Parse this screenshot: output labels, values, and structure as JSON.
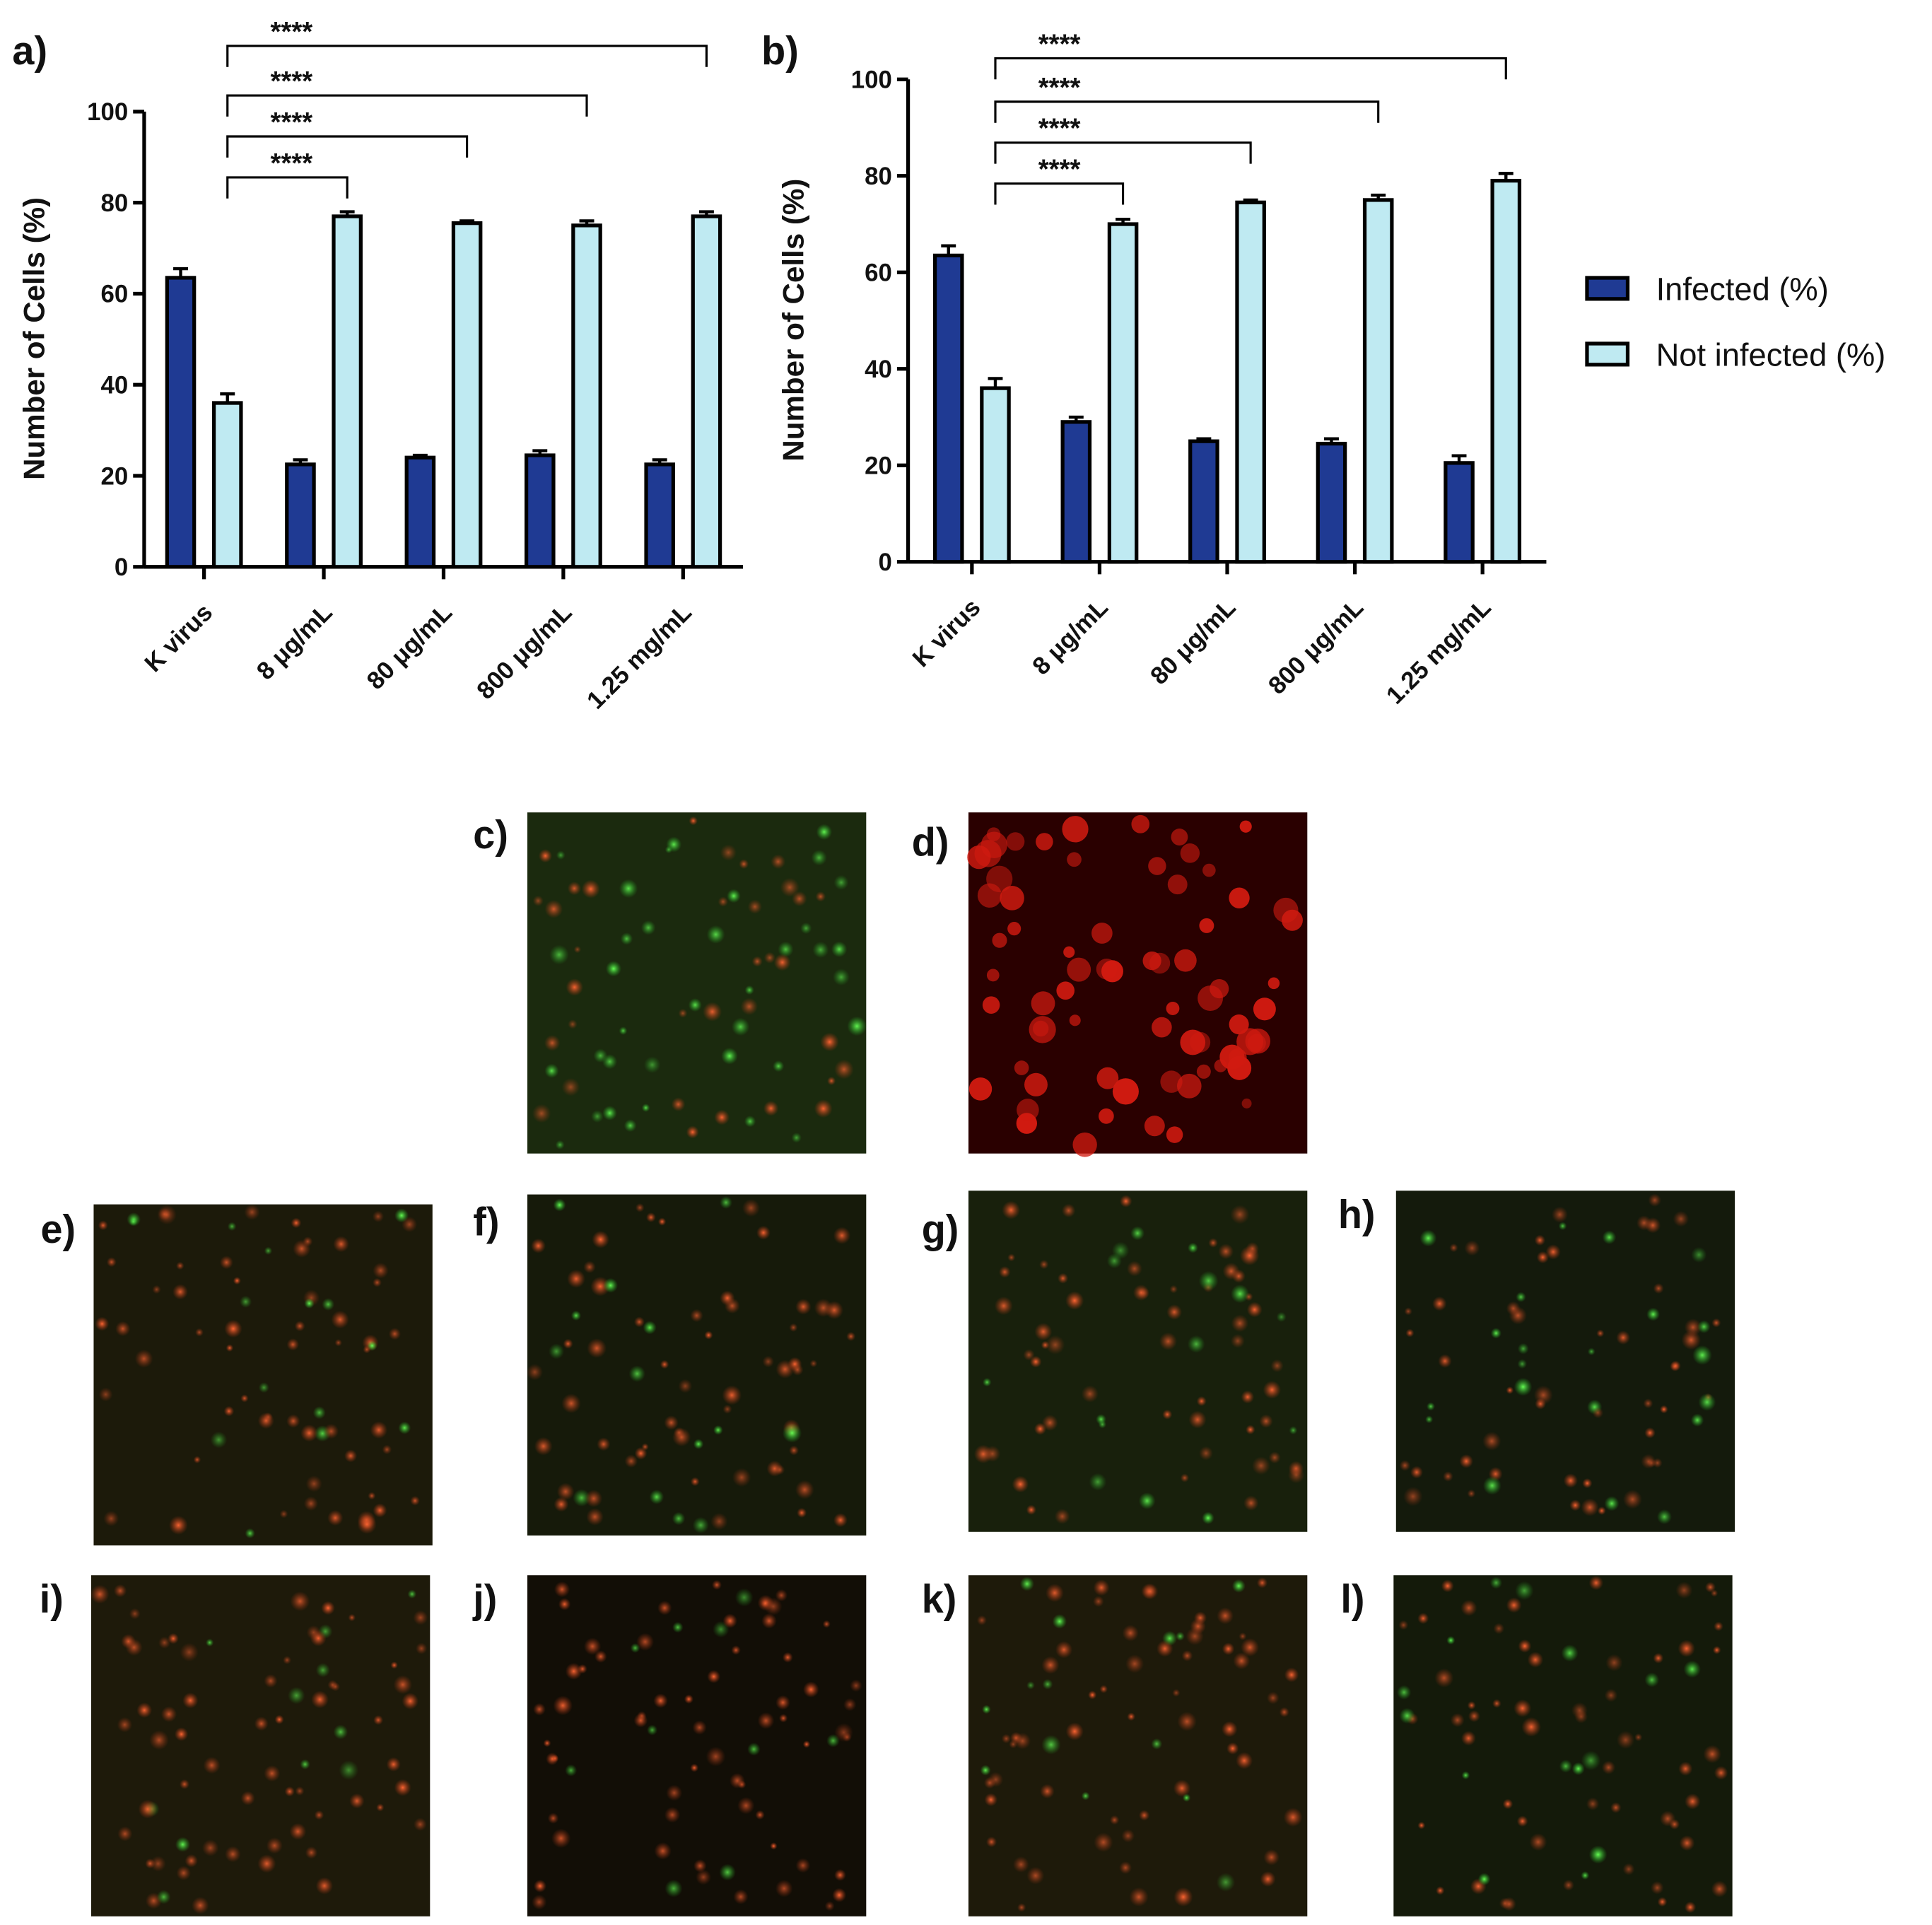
{
  "chart_data": [
    {
      "type": "bar",
      "panel_label": "a)",
      "y_label": "Number of Cells  (%)",
      "categories": [
        "K virus",
        "8 μg/mL",
        "80 μg/mL",
        "800 μg/mL",
        "1.25 mg/mL"
      ],
      "series": [
        {
          "color": "#1f3a93",
          "values": [
            63.5,
            22.5,
            24,
            24.5,
            22.5
          ],
          "errors": [
            2,
            1,
            0.5,
            1,
            1
          ]
        },
        {
          "color": "#bfeaf2",
          "values": [
            36,
            77,
            75.5,
            75,
            77
          ],
          "errors": [
            2,
            1,
            0.5,
            1,
            1
          ]
        }
      ],
      "significance": [
        "****",
        "****",
        "****",
        "****"
      ],
      "ylim": [
        0,
        100
      ],
      "yticks": [
        0,
        20,
        40,
        60,
        80,
        100
      ]
    },
    {
      "type": "bar",
      "panel_label": "b)",
      "y_label": "Number of Cells  (%)",
      "categories": [
        "K virus",
        "8 μg/mL",
        "80 μg/mL",
        "800 μg/mL",
        "1.25 mg/mL"
      ],
      "series": [
        {
          "name": "Infected (%)",
          "color": "#1f3a93",
          "values": [
            63.5,
            29,
            25,
            24.5,
            20.5
          ],
          "errors": [
            2,
            1,
            0.5,
            1,
            1.5
          ]
        },
        {
          "name": "Not infected (%)",
          "color": "#bfeaf2",
          "values": [
            36,
            70,
            74.5,
            75,
            79
          ],
          "errors": [
            2,
            1,
            0.5,
            1,
            1.5
          ]
        }
      ],
      "significance": [
        "****",
        "****",
        "****",
        "****"
      ],
      "ylim": [
        0,
        100
      ],
      "yticks": [
        0,
        20,
        40,
        60,
        80,
        100
      ],
      "legend": "right"
    }
  ],
  "panels": [
    {
      "label": "c)"
    },
    {
      "label": "d)"
    },
    {
      "label": "e)"
    },
    {
      "label": "f)"
    },
    {
      "label": "g)"
    },
    {
      "label": "h)"
    },
    {
      "label": "i)"
    },
    {
      "label": "j)"
    },
    {
      "label": "k)"
    },
    {
      "label": "l)"
    }
  ]
}
